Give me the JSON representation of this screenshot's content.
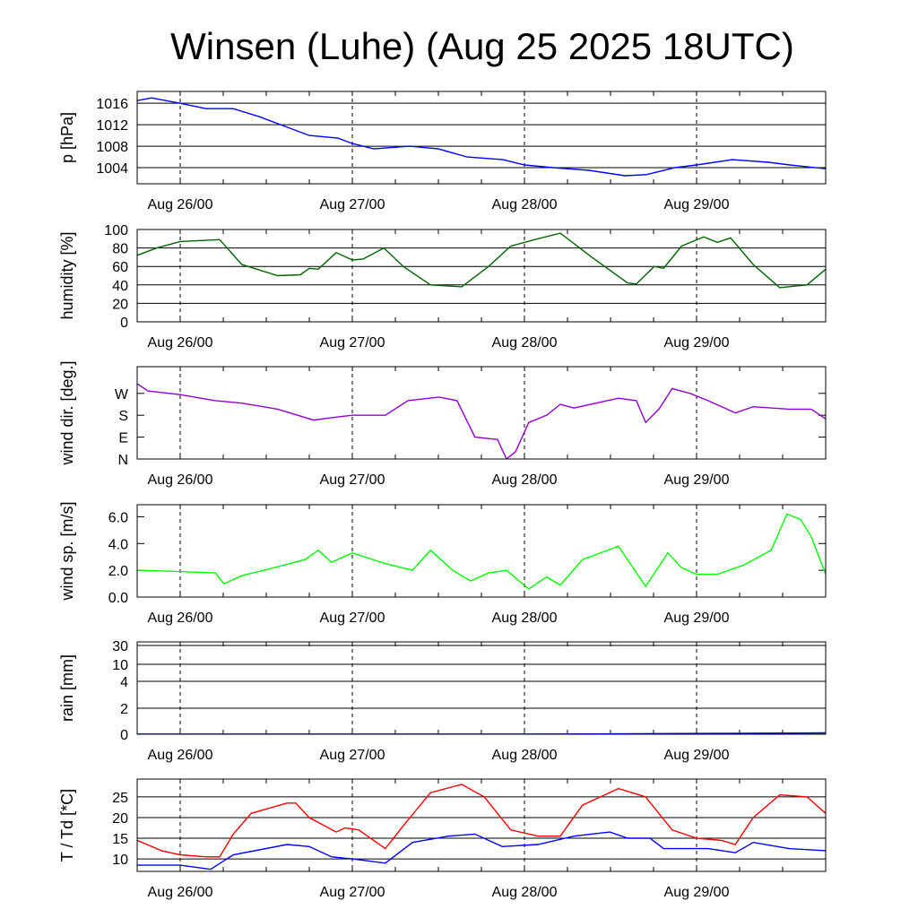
{
  "title": "Winsen (Luhe) (Aug 25 2025 18UTC)",
  "chart_data": {
    "type": "line",
    "x_unit": "hours since Aug 25 18UTC",
    "xlim": [
      0,
      96
    ],
    "xtick_labels": [
      {
        "h": 6,
        "label": "Aug 26/00"
      },
      {
        "h": 30,
        "label": "Aug 27/00"
      },
      {
        "h": 54,
        "label": "Aug 28/00"
      },
      {
        "h": 78,
        "label": "Aug 29/00"
      }
    ],
    "panels": [
      {
        "id": "pressure",
        "ylabel": "p [hPa]",
        "ylim": [
          1001,
          1018.2
        ],
        "yticks": [
          1004,
          1008,
          1012,
          1016
        ],
        "ytick_labels": [
          "1004",
          "1008",
          "1012",
          "1016"
        ],
        "series": [
          {
            "name": "pressure",
            "color": "#0000ff",
            "points": [
              [
                0,
                1016.5
              ],
              [
                2,
                1017
              ],
              [
                6,
                1016
              ],
              [
                9.6,
                1015
              ],
              [
                13.4,
                1015
              ],
              [
                17,
                1013.5
              ],
              [
                21,
                1011.5
              ],
              [
                24,
                1010
              ],
              [
                28,
                1009.5
              ],
              [
                30,
                1008.5
              ],
              [
                33,
                1007.5
              ],
              [
                38,
                1008
              ],
              [
                42,
                1007.5
              ],
              [
                46,
                1006
              ],
              [
                51,
                1005.5
              ],
              [
                54,
                1004.5
              ],
              [
                58,
                1004
              ],
              [
                63,
                1003.5
              ],
              [
                68,
                1002.5
              ],
              [
                71,
                1002.7
              ],
              [
                75,
                1004
              ],
              [
                78,
                1004.5
              ],
              [
                83,
                1005.5
              ],
              [
                88,
                1005
              ],
              [
                91,
                1004.5
              ],
              [
                96,
                1003.8
              ]
            ]
          }
        ]
      },
      {
        "id": "humidity",
        "ylabel": "humidity [%]",
        "ylim": [
          0,
          100
        ],
        "yticks": [
          0,
          20,
          40,
          60,
          80,
          100
        ],
        "ytick_labels": [
          "0",
          "20",
          "40",
          "60",
          "80",
          "100"
        ],
        "series": [
          {
            "name": "humidity",
            "color": "#006400",
            "points": [
              [
                0,
                72
              ],
              [
                2.75,
                80
              ],
              [
                6,
                87
              ],
              [
                11.5,
                89
              ],
              [
                14.6,
                62
              ],
              [
                19.6,
                50
              ],
              [
                22.75,
                51
              ],
              [
                24,
                58
              ],
              [
                25.25,
                57
              ],
              [
                27.75,
                75
              ],
              [
                30,
                67
              ],
              [
                31.5,
                68
              ],
              [
                34.4,
                80
              ],
              [
                37.1,
                60
              ],
              [
                40.9,
                40
              ],
              [
                45.25,
                38
              ],
              [
                49,
                60
              ],
              [
                52.1,
                82
              ],
              [
                55.9,
                90
              ],
              [
                59,
                96
              ],
              [
                63.4,
                70
              ],
              [
                68.4,
                42
              ],
              [
                69.6,
                41
              ],
              [
                72.1,
                60
              ],
              [
                73.4,
                58
              ],
              [
                75.9,
                82
              ],
              [
                79,
                92
              ],
              [
                80.9,
                86
              ],
              [
                82.75,
                91
              ],
              [
                85.9,
                62
              ],
              [
                89.6,
                37
              ],
              [
                93.4,
                40
              ],
              [
                96,
                57
              ]
            ]
          }
        ]
      },
      {
        "id": "wind_dir",
        "ylabel": "wind dir. [deg.]",
        "ylim": [
          0,
          380
        ],
        "yticks": [
          0,
          90,
          180,
          270
        ],
        "ytick_labels": [
          "N",
          "E",
          "S",
          "W"
        ],
        "series": [
          {
            "name": "wind direction",
            "color": "#9400d3",
            "points": [
              [
                0,
                310
              ],
              [
                1.5,
                280
              ],
              [
                6,
                265
              ],
              [
                10.9,
                240
              ],
              [
                14.6,
                230
              ],
              [
                19.6,
                205
              ],
              [
                24.6,
                160
              ],
              [
                27.1,
                170
              ],
              [
                30,
                180
              ],
              [
                34.6,
                180
              ],
              [
                37.75,
                240
              ],
              [
                42.1,
                255
              ],
              [
                44.6,
                240
              ],
              [
                47.1,
                90
              ],
              [
                50.25,
                80
              ],
              [
                51.5,
                0
              ],
              [
                52.75,
                30
              ],
              [
                54.6,
                150
              ],
              [
                57.1,
                180
              ],
              [
                59,
                225
              ],
              [
                60.9,
                210
              ],
              [
                67.1,
                250
              ],
              [
                69.6,
                240
              ],
              [
                70.9,
                150
              ],
              [
                72.75,
                205
              ],
              [
                74.6,
                290
              ],
              [
                77.1,
                270
              ],
              [
                79.6,
                240
              ],
              [
                83.4,
                190
              ],
              [
                85.9,
                215
              ],
              [
                90.9,
                205
              ],
              [
                94,
                205
              ],
              [
                96,
                165
              ]
            ]
          }
        ]
      },
      {
        "id": "wind_speed",
        "ylabel": "wind sp. [m/s]",
        "ylim": [
          0,
          6.9
        ],
        "yticks": [
          0,
          2,
          4,
          6
        ],
        "ytick_labels": [
          "0.0",
          "2.0",
          "4.0",
          "6.0"
        ],
        "series": [
          {
            "name": "wind speed",
            "color": "#00ff00",
            "points": [
              [
                0,
                2.0
              ],
              [
                6,
                1.9
              ],
              [
                10.9,
                1.8
              ],
              [
                12.1,
                1.0
              ],
              [
                14.6,
                1.6
              ],
              [
                18.4,
                2.1
              ],
              [
                23.4,
                2.8
              ],
              [
                25.25,
                3.5
              ],
              [
                27.1,
                2.6
              ],
              [
                30,
                3.3
              ],
              [
                34.6,
                2.5
              ],
              [
                38.4,
                2.0
              ],
              [
                40.9,
                3.5
              ],
              [
                44,
                2.0
              ],
              [
                46.5,
                1.2
              ],
              [
                49,
                1.8
              ],
              [
                51.5,
                2.0
              ],
              [
                54.6,
                0.6
              ],
              [
                57.1,
                1.5
              ],
              [
                59,
                0.9
              ],
              [
                62.1,
                2.8
              ],
              [
                67.1,
                3.8
              ],
              [
                70.9,
                0.8
              ],
              [
                74,
                3.3
              ],
              [
                75.9,
                2.2
              ],
              [
                78,
                1.7
              ],
              [
                80.9,
                1.7
              ],
              [
                84.6,
                2.4
              ],
              [
                88.4,
                3.5
              ],
              [
                90.6,
                6.2
              ],
              [
                92.5,
                5.8
              ],
              [
                94,
                4.5
              ],
              [
                96,
                1.7
              ]
            ]
          }
        ]
      },
      {
        "id": "rain",
        "ylabel": "rain [mm]",
        "ylim": [
          0,
          30
        ],
        "yticks": [
          0,
          2,
          4,
          10,
          30
        ],
        "ytick_labels": [
          "0",
          "2",
          "4",
          "10",
          "30"
        ],
        "scale": "nonlinear",
        "series": [
          {
            "name": "rain",
            "color": "#008000",
            "points": [
              [
                0,
                0
              ],
              [
                96,
                0
              ]
            ]
          },
          {
            "name": "rain accumulated",
            "color": "#0000ff",
            "points": [
              [
                0,
                0
              ],
              [
                54,
                0
              ],
              [
                96,
                0.1
              ]
            ]
          }
        ]
      },
      {
        "id": "temperature",
        "ylabel": "T / Td [*C]",
        "ylim": [
          7,
          29.3
        ],
        "yticks": [
          10,
          15,
          20,
          25
        ],
        "ytick_labels": [
          "10",
          "15",
          "20",
          "25"
        ],
        "series": [
          {
            "name": "T",
            "color": "#ff0000",
            "points": [
              [
                0,
                14.5
              ],
              [
                3.4,
                12
              ],
              [
                6,
                11
              ],
              [
                9.6,
                10.5
              ],
              [
                11.5,
                10.5
              ],
              [
                13.4,
                16
              ],
              [
                15.9,
                21
              ],
              [
                20.9,
                23.5
              ],
              [
                22.1,
                23.5
              ],
              [
                24,
                20
              ],
              [
                27.75,
                16.5
              ],
              [
                29,
                17.5
              ],
              [
                30.9,
                17
              ],
              [
                34.6,
                12.5
              ],
              [
                37.1,
                18
              ],
              [
                40.9,
                26
              ],
              [
                45.25,
                28
              ],
              [
                48.4,
                25
              ],
              [
                52.1,
                17
              ],
              [
                55.9,
                15.5
              ],
              [
                59,
                15.5
              ],
              [
                62.1,
                23
              ],
              [
                67.1,
                27
              ],
              [
                70.9,
                25
              ],
              [
                74.6,
                17
              ],
              [
                78,
                15
              ],
              [
                81.5,
                14.5
              ],
              [
                83.4,
                13.5
              ],
              [
                85.9,
                20
              ],
              [
                89.6,
                25.5
              ],
              [
                93.4,
                25
              ],
              [
                96,
                21
              ]
            ]
          },
          {
            "name": "Td",
            "color": "#0000ff",
            "points": [
              [
                0,
                8.5
              ],
              [
                6,
                8.5
              ],
              [
                10.25,
                7.5
              ],
              [
                13.4,
                11
              ],
              [
                20.9,
                13.5
              ],
              [
                24,
                13
              ],
              [
                27.1,
                10.5
              ],
              [
                30,
                10
              ],
              [
                34.6,
                9
              ],
              [
                38.4,
                14
              ],
              [
                43.4,
                15.5
              ],
              [
                47.1,
                16
              ],
              [
                50.9,
                13
              ],
              [
                55.9,
                13.5
              ],
              [
                60.9,
                15.5
              ],
              [
                65.9,
                16.5
              ],
              [
                68.4,
                15
              ],
              [
                71.5,
                15
              ],
              [
                73.4,
                12.5
              ],
              [
                79.6,
                12.5
              ],
              [
                83.4,
                11.5
              ],
              [
                85.9,
                14
              ],
              [
                90.9,
                12.5
              ],
              [
                96,
                12
              ]
            ]
          }
        ]
      }
    ]
  }
}
